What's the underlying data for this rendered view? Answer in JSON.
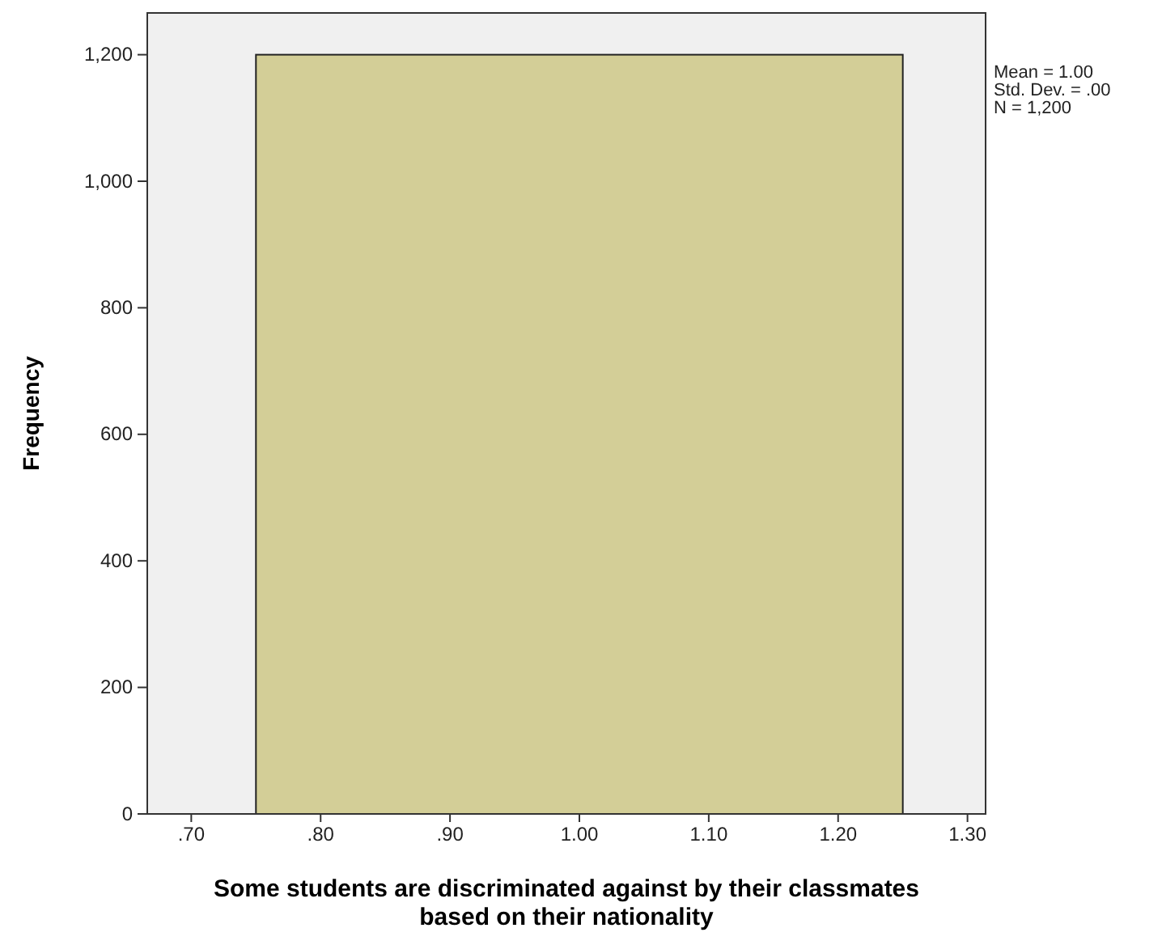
{
  "chart_data": {
    "type": "histogram",
    "xlabel": "Some students are discriminated against by their classmates based on their nationality",
    "ylabel": "Frequency",
    "bins": [
      0.75,
      1.25
    ],
    "values": [
      1200
    ],
    "color": "#d3ce97",
    "xlim": [
      0.666,
      1.314
    ],
    "ylim": [
      0,
      1266
    ],
    "xticks": [
      {
        "value": 0.7,
        "label": ".70"
      },
      {
        "value": 0.8,
        "label": ".80"
      },
      {
        "value": 0.9,
        "label": ".90"
      },
      {
        "value": 1.0,
        "label": "1.00"
      },
      {
        "value": 1.1,
        "label": "1.10"
      },
      {
        "value": 1.2,
        "label": "1.20"
      },
      {
        "value": 1.3,
        "label": "1.30"
      }
    ],
    "yticks": [
      0,
      {
        "value": 200,
        "label": "200"
      },
      {
        "value": 400,
        "label": "400"
      },
      {
        "value": 600,
        "label": "600"
      },
      {
        "value": 800,
        "label": "800"
      },
      {
        "value": 1000,
        "label": "1,000"
      },
      {
        "value": 1200,
        "label": "1,200"
      }
    ],
    "annotations": [
      "Mean = 1.00",
      "Std. Dev. = .00",
      "N = 1,200"
    ],
    "grid": false
  }
}
